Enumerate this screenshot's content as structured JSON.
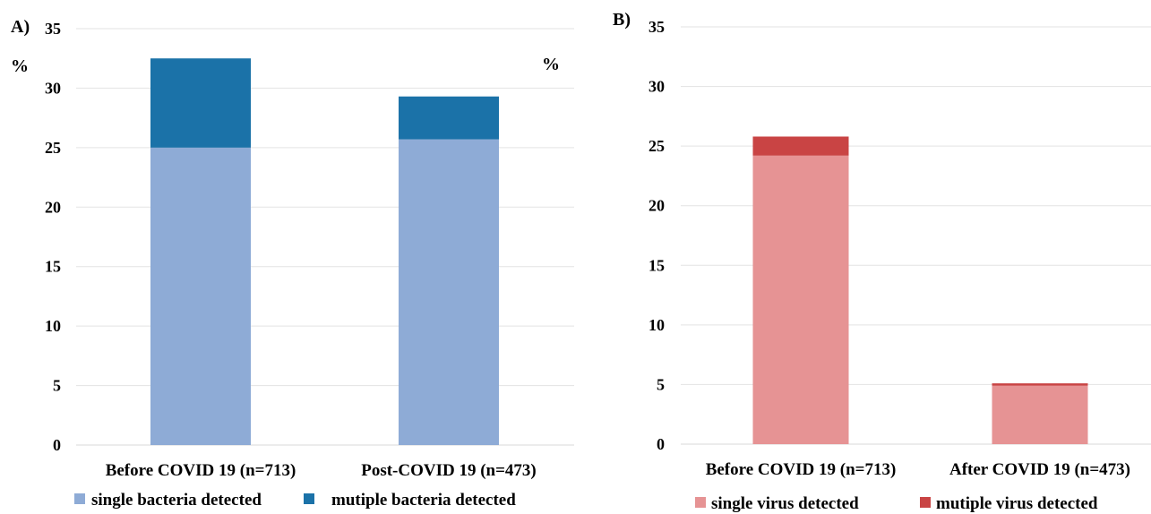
{
  "chart_data": [
    {
      "type": "bar",
      "stacked": true,
      "panel_label": "A)",
      "unit_label": "%",
      "categories": [
        "Before COVID 19 (n=713)",
        "Post-COVID 19 (n=473)"
      ],
      "series": [
        {
          "name": "single bacteria detected",
          "values": [
            25.0,
            25.7
          ],
          "color": "#8eabd6"
        },
        {
          "name": "mutiple bacteria detected",
          "values": [
            7.5,
            3.6
          ],
          "color": "#1b72a8"
        }
      ],
      "ylim": [
        0,
        35
      ],
      "yticks": [
        0,
        5,
        10,
        15,
        20,
        25,
        30,
        35
      ],
      "grid": true,
      "legend_position": "bottom"
    },
    {
      "type": "bar",
      "stacked": true,
      "panel_label": "B)",
      "categories": [
        "Before COVID 19 (n=713)",
        "After COVID 19 (n=473)"
      ],
      "series": [
        {
          "name": "single virus detected",
          "values": [
            24.2,
            4.9
          ],
          "color": "#e69394"
        },
        {
          "name": "mutiple virus detected",
          "values": [
            1.6,
            0.2
          ],
          "color": "#c94444"
        }
      ],
      "ylim": [
        0,
        35
      ],
      "yticks": [
        0,
        5,
        10,
        15,
        20,
        25,
        30,
        35
      ],
      "grid": true,
      "legend_position": "bottom"
    }
  ]
}
